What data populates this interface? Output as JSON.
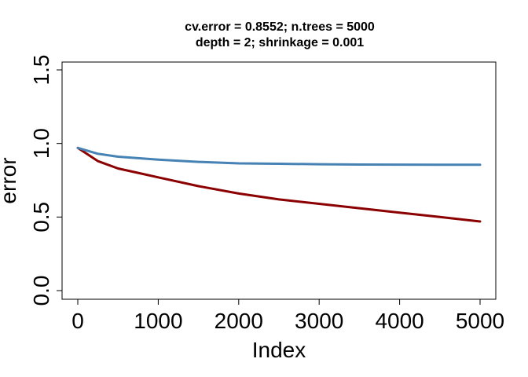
{
  "chart_data": {
    "type": "line",
    "title": [
      "cv.error = 0.8552; n.trees = 5000",
      "depth = 2; shrinkage = 0.001"
    ],
    "xlabel": "Index",
    "ylabel": "error",
    "xlim": [
      0,
      5000
    ],
    "ylim": [
      0.0,
      1.5
    ],
    "xticks": [
      0,
      1000,
      2000,
      3000,
      4000,
      5000
    ],
    "xtick_labels": [
      "0",
      "1000",
      "2000",
      "3000",
      "4000",
      "5000"
    ],
    "yticks": [
      0.0,
      0.5,
      1.0,
      1.5
    ],
    "ytick_labels": [
      "0.0",
      "0.5",
      "1.0",
      "1.5"
    ],
    "grid": false,
    "legend": "none",
    "series": [
      {
        "color": "#8b0000",
        "x": [
          0,
          250,
          500,
          750,
          1000,
          1500,
          2000,
          2500,
          3000,
          3500,
          4000,
          4500,
          5000
        ],
        "y": [
          0.97,
          0.88,
          0.83,
          0.8,
          0.77,
          0.71,
          0.66,
          0.62,
          0.59,
          0.56,
          0.53,
          0.5,
          0.47
        ]
      },
      {
        "color": "#4682b4",
        "x": [
          0,
          250,
          500,
          750,
          1000,
          1500,
          2000,
          2500,
          3000,
          3500,
          4000,
          4500,
          5000
        ],
        "y": [
          0.97,
          0.93,
          0.91,
          0.9,
          0.89,
          0.875,
          0.865,
          0.862,
          0.859,
          0.857,
          0.856,
          0.855,
          0.855
        ]
      }
    ]
  }
}
